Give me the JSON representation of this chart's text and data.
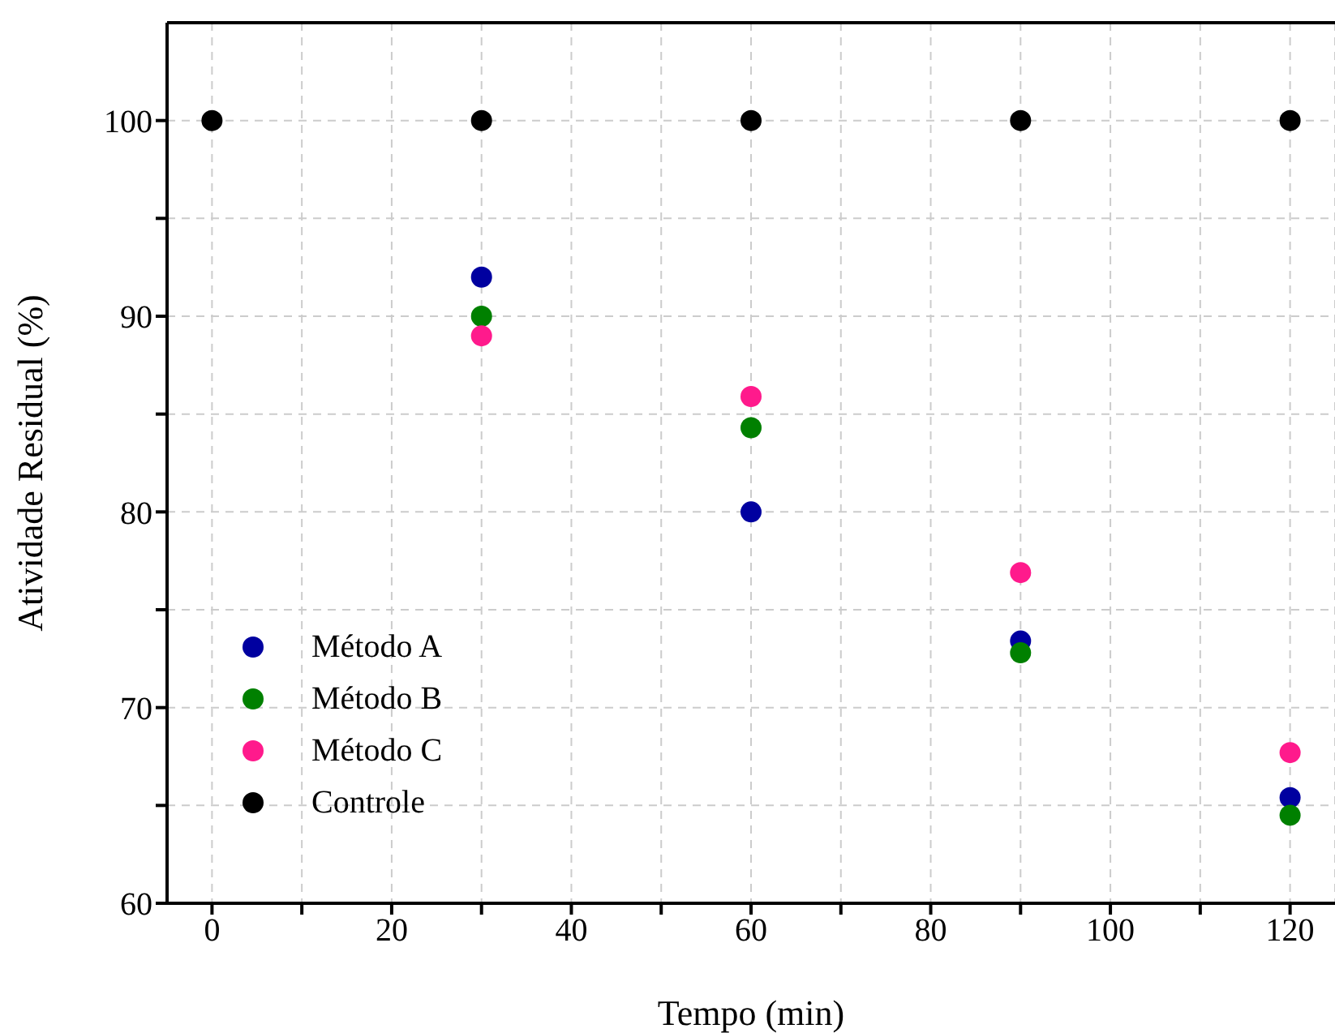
{
  "chart_data": {
    "type": "scatter",
    "xlabel": "Tempo (min)",
    "ylabel": "Atividade Residual (%)",
    "x": [
      0,
      30,
      60,
      90,
      120
    ],
    "series": [
      {
        "name": "Método A",
        "color": "#0000a0",
        "values": [
          null,
          92.0,
          80.0,
          73.4,
          65.4
        ]
      },
      {
        "name": "Método B",
        "color": "#008000",
        "values": [
          null,
          90.0,
          84.3,
          72.8,
          64.5
        ]
      },
      {
        "name": "Método C",
        "color": "#ff1a8c",
        "values": [
          null,
          89.0,
          85.9,
          76.9,
          67.7
        ]
      },
      {
        "name": "Controle",
        "color": "#000000",
        "values": [
          100,
          100,
          100,
          100,
          100
        ]
      }
    ],
    "xlim": [
      -5,
      125
    ],
    "xticks": [
      0,
      {
        "value": 10,
        "label": null
      },
      20,
      {
        "value": 30,
        "label": null
      },
      40,
      {
        "value": 50,
        "label": null
      },
      60,
      {
        "value": 70,
        "label": null
      },
      80,
      {
        "value": 90,
        "label": null
      },
      100,
      {
        "value": 110,
        "label": null
      },
      120
    ],
    "ylim": [
      60,
      105
    ],
    "yticks": [
      60,
      {
        "value": 65,
        "label": null
      },
      70,
      {
        "value": 75,
        "label": null
      },
      80,
      {
        "value": 85,
        "label": null
      },
      90,
      {
        "value": 95,
        "label": null
      },
      100
    ],
    "grid": true,
    "legend": "bottom left",
    "marker": "circle"
  }
}
